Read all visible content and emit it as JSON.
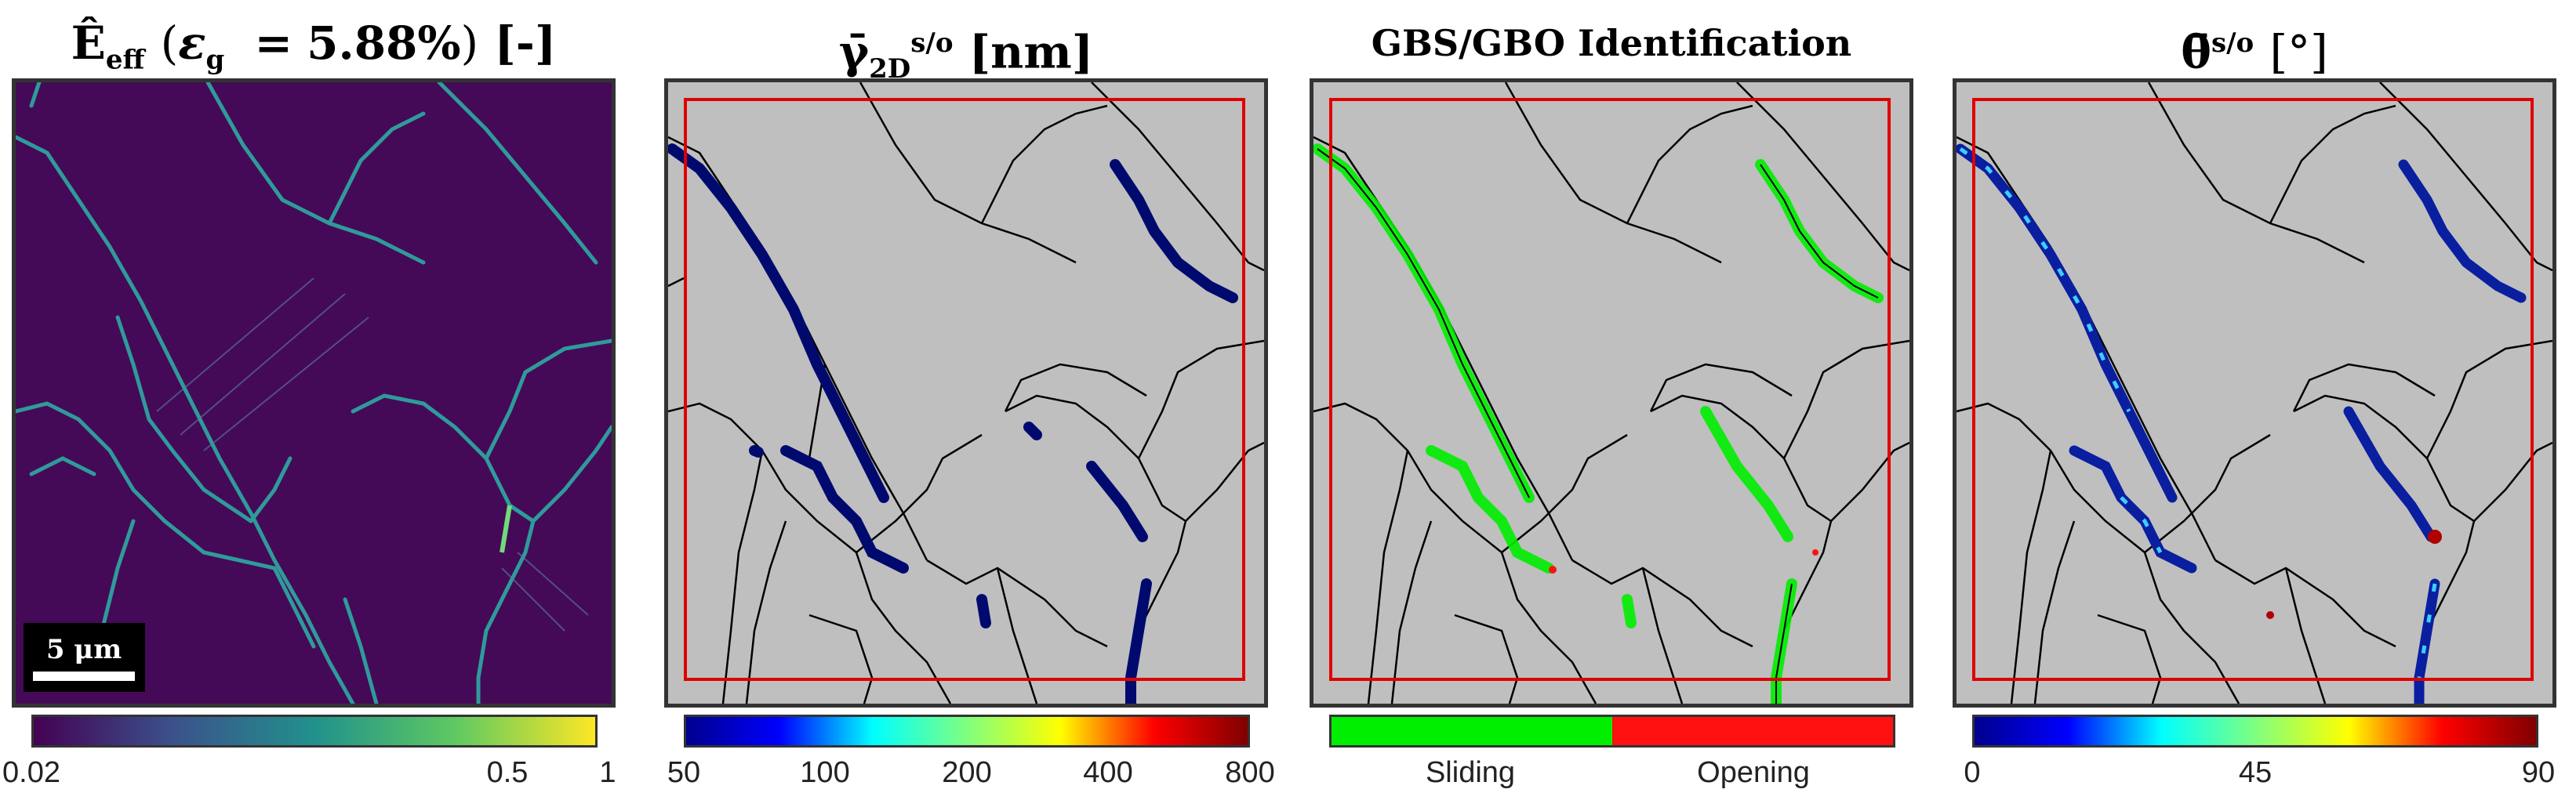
{
  "chart_data": [
    {
      "type": "heatmap",
      "title_parts": {
        "quantity": "Ê",
        "sub": "eff",
        "open": "(",
        "eps": "ε",
        "eps_sub": "g",
        "eq": "=",
        "value": "5.88%",
        "close": ")",
        "unit": "[-]"
      },
      "colormap": "viridis",
      "scale": "log",
      "colorbar_ticks": [
        "0.02",
        "0.5",
        "1"
      ],
      "colorbar_range": [
        0.02,
        1
      ],
      "scalebar_label": "5 μm",
      "colors": {
        "background": "#440a57",
        "boundary": "#2f9a9a",
        "bright": "#6fdc78"
      }
    },
    {
      "type": "heatmap",
      "title_parts": {
        "quantity": "γ̄",
        "sup": "s/o",
        "sub": "2D",
        "unit": "[nm]"
      },
      "colormap": "jet",
      "scale": "log",
      "colorbar_ticks": [
        "50",
        "100",
        "200",
        "400",
        "800"
      ],
      "colorbar_range": [
        50,
        800
      ],
      "colors": {
        "background": "#bfbfbf",
        "roi": "#e00000",
        "segment": "#000a6e"
      }
    },
    {
      "type": "heatmap",
      "title": "GBS/GBO Identification",
      "legend_entries": [
        "Sliding",
        "Opening"
      ],
      "colors": {
        "sliding": "#00ee00",
        "opening": "#ff1010",
        "background": "#bfbfbf",
        "roi": "#e00000"
      }
    },
    {
      "type": "heatmap",
      "title_parts": {
        "quantity": "θ̄",
        "sup": "s/o",
        "unit": "[°]"
      },
      "colormap": "jet",
      "colorbar_ticks": [
        "0",
        "45",
        "90"
      ],
      "colorbar_range": [
        0,
        90
      ],
      "colors": {
        "background": "#bfbfbf",
        "roi": "#e00000",
        "low": "#0a1ea0",
        "mid": "#3ad0ff",
        "high": "#b00000"
      }
    }
  ]
}
